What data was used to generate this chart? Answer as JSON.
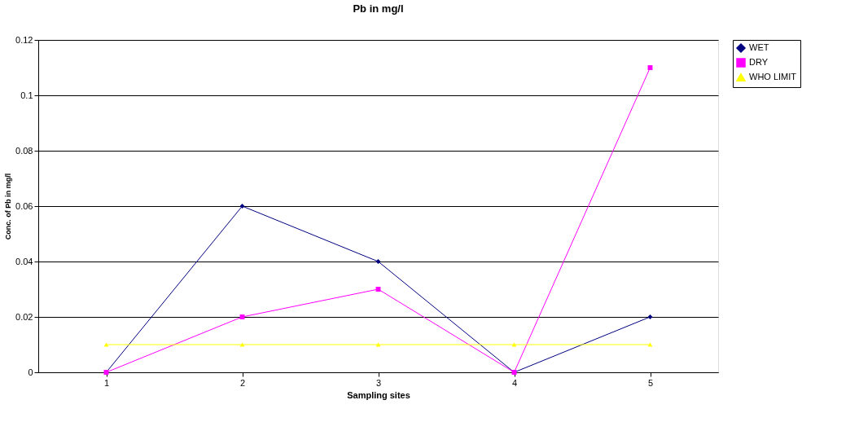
{
  "chart_data": {
    "type": "line",
    "title": "Pb in mg/l",
    "xlabel": "Sampling sites",
    "ylabel": "Conc. of Pb in mg/l",
    "categories": [
      "1",
      "2",
      "3",
      "4",
      "5"
    ],
    "series": [
      {
        "name": "WET",
        "color": "#000080",
        "marker": "diamond",
        "values": [
          0,
          0.06,
          0.04,
          0,
          0.02
        ]
      },
      {
        "name": "DRY",
        "color": "#ff00ff",
        "marker": "square",
        "values": [
          0,
          0.02,
          0.03,
          0,
          0.11
        ]
      },
      {
        "name": "WHO LIMIT",
        "color": "#ffff00",
        "marker": "triangle",
        "values": [
          0.01,
          0.01,
          0.01,
          0.01,
          0.01
        ]
      }
    ],
    "ylim": [
      0,
      0.12
    ],
    "yticks": [
      0,
      0.02,
      0.04,
      0.06,
      0.08,
      0.1,
      0.12
    ],
    "grid": "y",
    "legend": "right",
    "line_style": "solid"
  }
}
